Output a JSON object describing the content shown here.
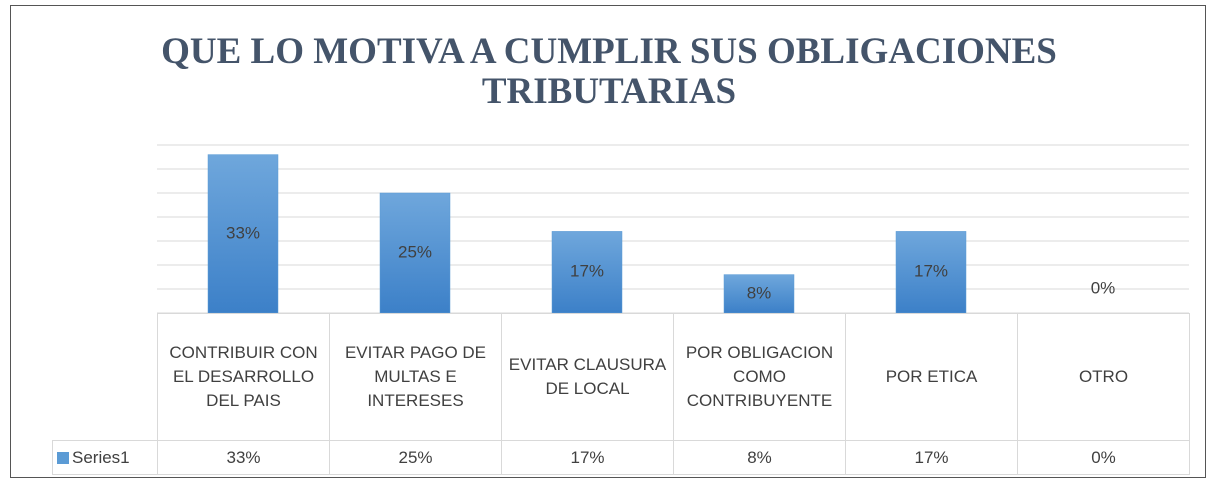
{
  "chart_data": {
    "type": "bar",
    "title": "QUE LO MOTIVA A CUMPLIR SUS OBLIGACIONES TRIBUTARIAS",
    "categories": [
      "CONTRIBUIR CON EL DESARROLLO DEL PAIS",
      "EVITAR PAGO DE MULTAS E INTERESES",
      "EVITAR CLAUSURA DE LOCAL",
      "POR OBLIGACION COMO CONTRIBUYENTE",
      "POR ETICA",
      "OTRO"
    ],
    "series": [
      {
        "name": "Series1",
        "color": "#5b9bd5",
        "values": [
          33,
          25,
          17,
          8,
          17,
          0
        ],
        "value_labels": [
          "33%",
          "25%",
          "17%",
          "8%",
          "17%",
          "0%"
        ]
      }
    ],
    "ylim": [
      0,
      35
    ],
    "yticks": [
      0,
      5,
      10,
      15,
      20,
      25,
      30,
      35
    ],
    "grid": true,
    "data_table": true
  }
}
